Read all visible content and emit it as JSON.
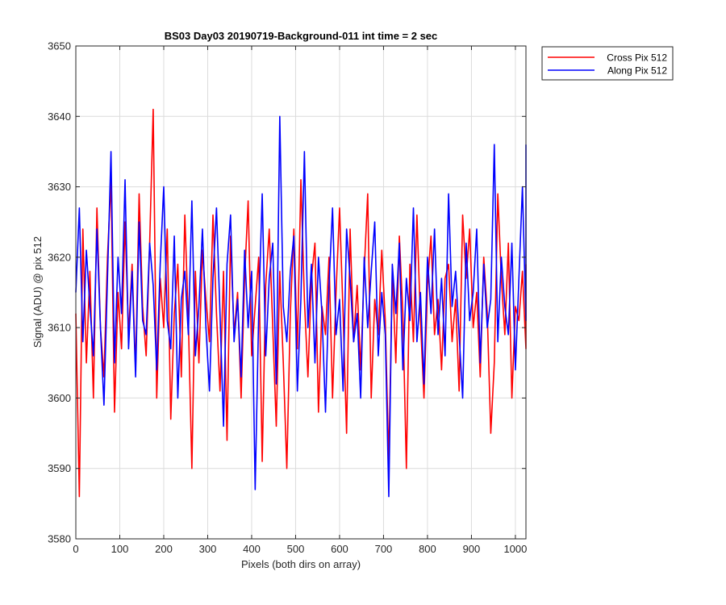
{
  "chart_data": {
    "type": "line",
    "title": "BS03 Day03 20190719-Background-011 int time = 2 sec",
    "xlabel": "Pixels (both dirs on array)",
    "ylabel": "Signal (ADU) @ pix 512",
    "xlim": [
      0,
      1024
    ],
    "ylim": [
      3580,
      3650
    ],
    "xticks": [
      0,
      100,
      200,
      300,
      400,
      500,
      600,
      700,
      800,
      900,
      1000
    ],
    "yticks": [
      3580,
      3590,
      3600,
      3610,
      3620,
      3630,
      3640,
      3650
    ],
    "grid": true,
    "legend_position": "outside-top-right",
    "x_step": 8,
    "series": [
      {
        "name": "Cross Pix 512",
        "color": "#ff0000",
        "values": [
          3612,
          3586,
          3624,
          3605,
          3618,
          3600,
          3627,
          3610,
          3603,
          3620,
          3631,
          3598,
          3615,
          3607,
          3625,
          3609,
          3619,
          3604,
          3629,
          3613,
          3606,
          3622,
          3641,
          3600,
          3617,
          3610,
          3624,
          3597,
          3612,
          3619,
          3603,
          3626,
          3611,
          3590,
          3618,
          3605,
          3621,
          3614,
          3608,
          3626,
          3612,
          3601,
          3618,
          3594,
          3623,
          3609,
          3615,
          3600,
          3617,
          3628,
          3606,
          3613,
          3620,
          3591,
          3616,
          3624,
          3610,
          3596,
          3618,
          3605,
          3590,
          3612,
          3624,
          3607,
          3631,
          3614,
          3603,
          3617,
          3622,
          3598,
          3613,
          3609,
          3620,
          3600,
          3615,
          3627,
          3612,
          3595,
          3624,
          3608,
          3616,
          3604,
          3618,
          3629,
          3600,
          3614,
          3609,
          3621,
          3611,
          3591,
          3618,
          3605,
          3623,
          3612,
          3590,
          3619,
          3608,
          3626,
          3611,
          3600,
          3616,
          3623,
          3609,
          3614,
          3604,
          3617,
          3619,
          3608,
          3614,
          3601,
          3626,
          3617,
          3624,
          3610,
          3615,
          3603,
          3620,
          3612,
          3595,
          3605,
          3629,
          3617,
          3609,
          3622,
          3600,
          3613,
          3611,
          3618,
          3607,
          3619
        ]
      },
      {
        "name": "Along Pix 512",
        "color": "#0000ff",
        "values": [
          3615,
          3627,
          3608,
          3621,
          3613,
          3606,
          3624,
          3610,
          3599,
          3617,
          3635,
          3605,
          3620,
          3612,
          3631,
          3607,
          3618,
          3603,
          3625,
          3611,
          3609,
          3622,
          3616,
          3604,
          3619,
          3630,
          3611,
          3607,
          3623,
          3600,
          3614,
          3618,
          3609,
          3628,
          3606,
          3613,
          3624,
          3610,
          3601,
          3617,
          3627,
          3612,
          3596,
          3619,
          3626,
          3608,
          3614,
          3603,
          3621,
          3610,
          3618,
          3587,
          3612,
          3629,
          3606,
          3617,
          3622,
          3602,
          3640,
          3613,
          3608,
          3618,
          3623,
          3601,
          3614,
          3635,
          3610,
          3619,
          3605,
          3620,
          3612,
          3598,
          3616,
          3627,
          3609,
          3614,
          3601,
          3624,
          3617,
          3608,
          3612,
          3600,
          3620,
          3610,
          3618,
          3625,
          3606,
          3615,
          3609,
          3586,
          3619,
          3612,
          3622,
          3604,
          3617,
          3611,
          3627,
          3608,
          3615,
          3602,
          3620,
          3612,
          3624,
          3609,
          3617,
          3606,
          3629,
          3613,
          3618,
          3609,
          3600,
          3622,
          3611,
          3615,
          3624,
          3605,
          3619,
          3610,
          3614,
          3636,
          3608,
          3620,
          3613,
          3609,
          3622,
          3604,
          3617,
          3630,
          3611,
          3636
        ]
      }
    ]
  }
}
